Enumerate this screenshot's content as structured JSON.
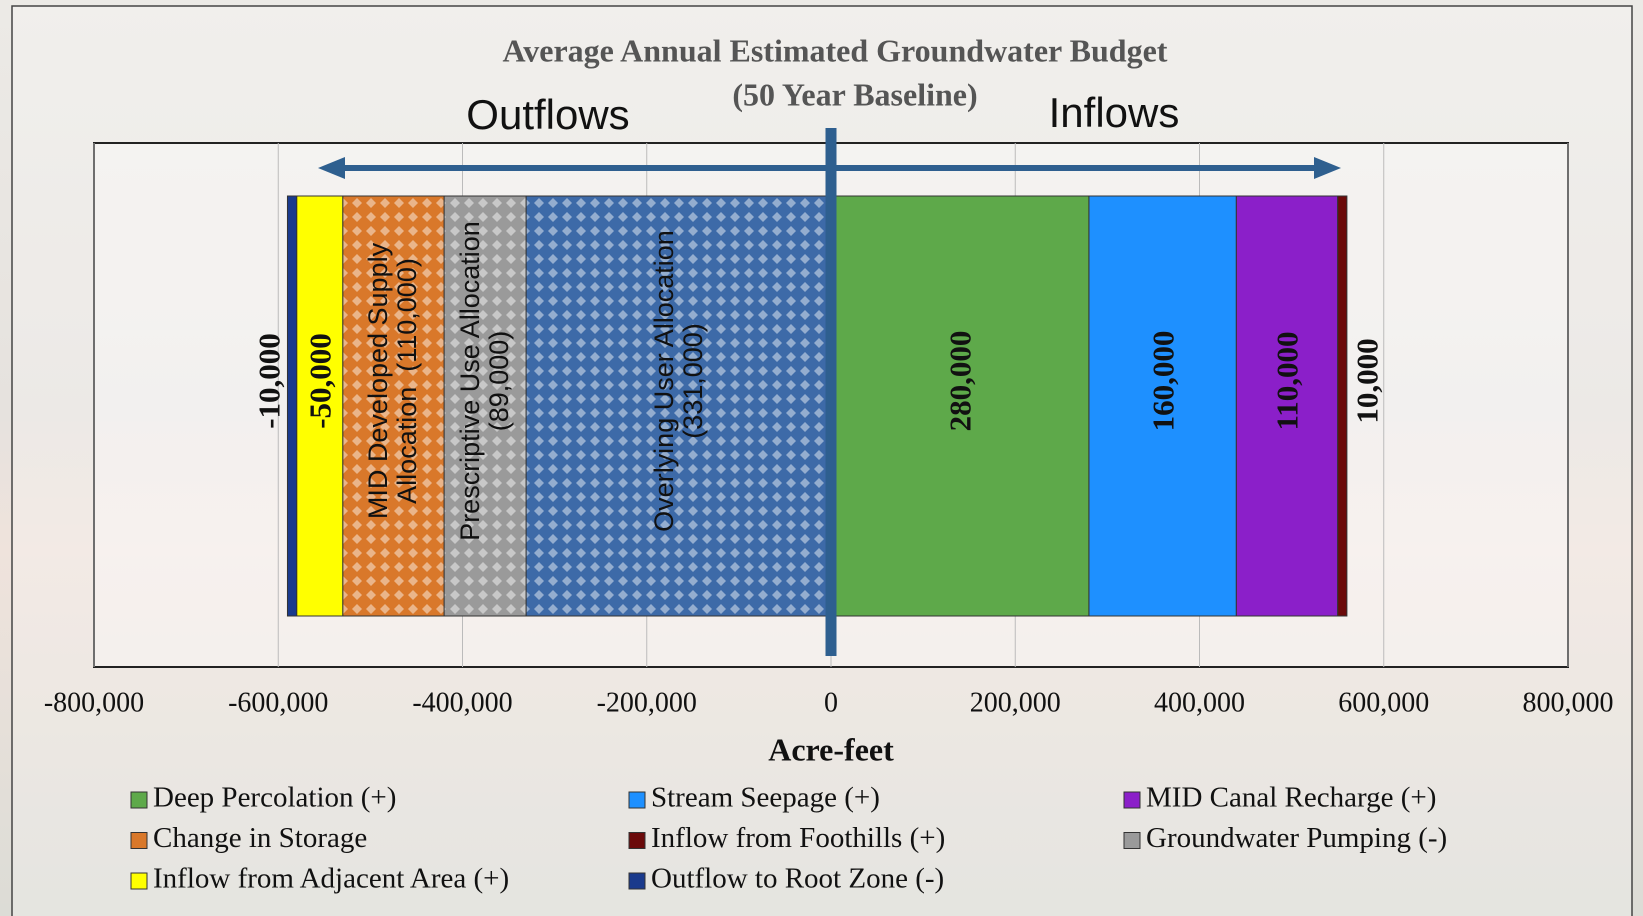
{
  "chart_data": {
    "type": "stacked-bar-horizontal",
    "title": "Average Annual Estimated Groundwater  Budget",
    "subtitle": "(50 Year Baseline)",
    "x_label": "Acre-feet",
    "annotations": [
      "Outflows",
      "Inflows"
    ],
    "xlim": [
      -800000,
      800000
    ],
    "xticks": [
      {
        "value": -800000,
        "label": "-800,000"
      },
      {
        "value": -600000,
        "label": "-600,000"
      },
      {
        "value": -400000,
        "label": "-400,000"
      },
      {
        "value": -200000,
        "label": "-200,000"
      },
      0,
      {
        "value": 200000,
        "label": "200,000"
      },
      {
        "value": 400000,
        "label": "400,000"
      },
      {
        "value": 600000,
        "label": "600,000"
      },
      {
        "value": 800000,
        "label": "800,000"
      }
    ],
    "grid": true,
    "series": [
      {
        "name": "Deep Percolation (+)",
        "color": "#5ea94a",
        "values": [
          280000
        ],
        "value_labels": [
          "280,000"
        ]
      },
      {
        "name": "Stream Seepage (+)",
        "color": "#1e90ff",
        "values": [
          160000
        ],
        "value_labels": [
          "160,000"
        ]
      },
      {
        "name": "MID Canal Recharge (+)",
        "color": "#8b1fc9",
        "values": [
          110000
        ],
        "value_labels": [
          "110,000"
        ]
      },
      {
        "name": "Change in Storage",
        "color": "#d9782a",
        "pattern": true,
        "values": [
          -110000
        ],
        "value_labels": [
          "MID Developed Supply\nAllocation  (110,000)"
        ]
      },
      {
        "name": "Inflow from Foothills (+)",
        "color": "#6b0a0a",
        "values": [
          10000
        ],
        "value_labels": [
          "10,000"
        ]
      },
      {
        "name": "Groundwater Pumping (-)",
        "color": "#9a9a9a",
        "pattern": true,
        "values": [
          -89000
        ],
        "value_labels": [
          "Prescriptive Use Allocation\n(89,000)"
        ]
      },
      {
        "name": "Inflow from Adjacent Area (+)",
        "color": "#ffff00",
        "values": [
          -50000
        ],
        "value_labels": [
          "-50,000"
        ]
      },
      {
        "name": "Outflow to Root Zone (-)",
        "color": "#1a3a8c",
        "values": [
          -10000
        ],
        "value_labels": [
          "-10,000"
        ]
      },
      {
        "color": "#3d6aa8",
        "pattern": true,
        "values": [
          -331000
        ],
        "value_labels": [
          "Overlying User Allocation\n(331,000)"
        ]
      }
    ]
  }
}
